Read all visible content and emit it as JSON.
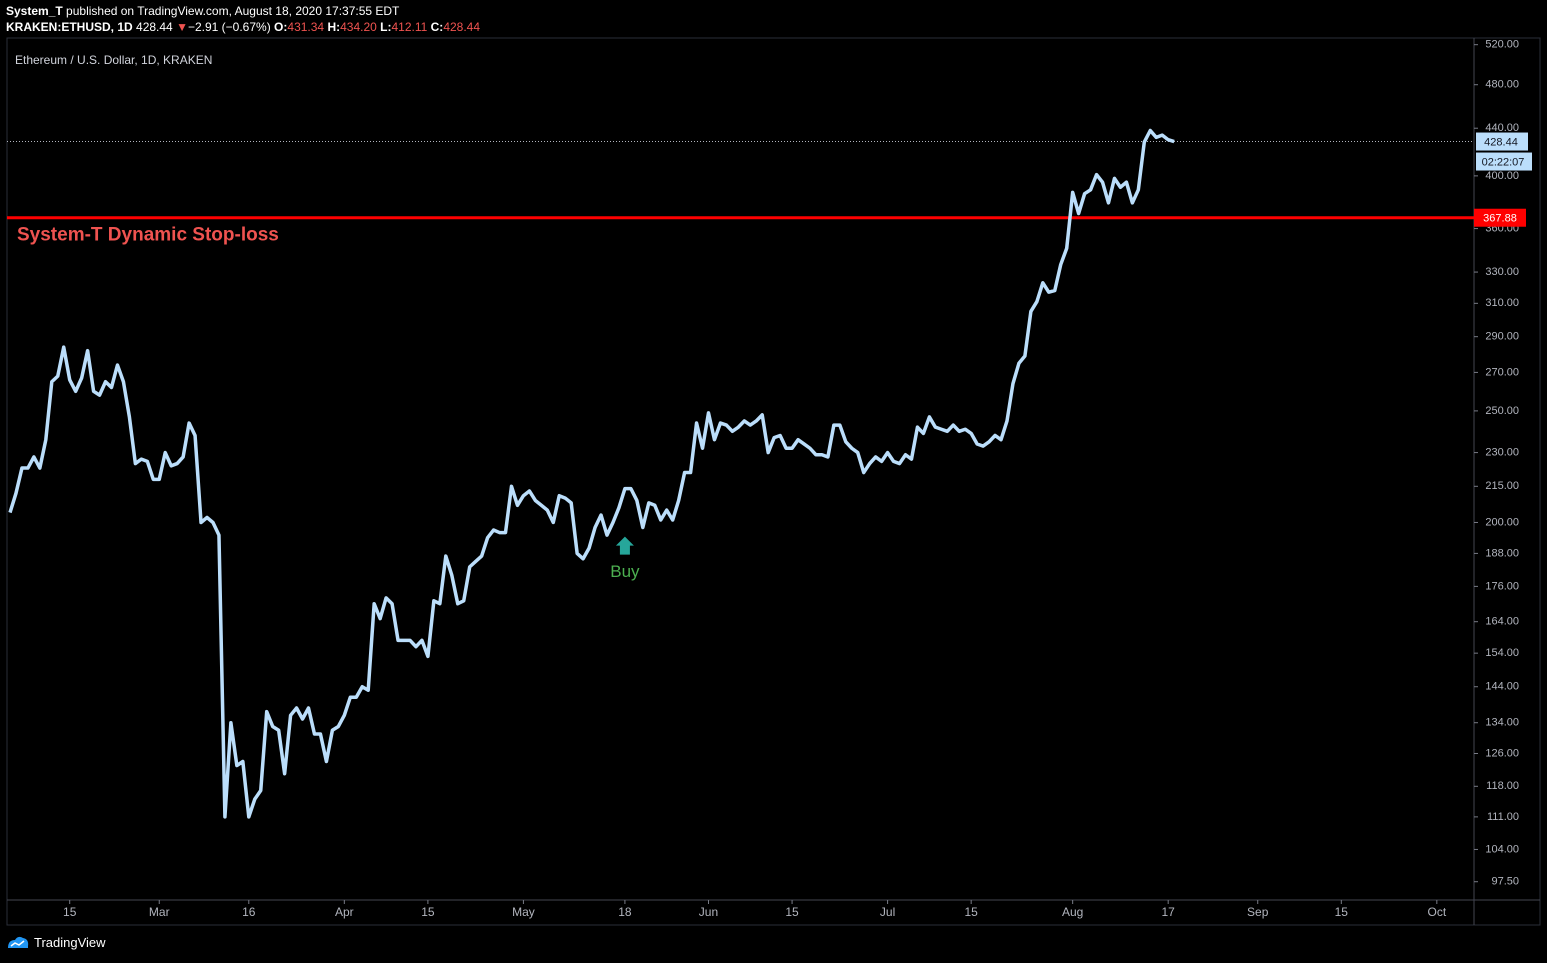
{
  "header": {
    "publisher": "System_T",
    "published_text": "published on TradingView.com, August 18, 2020 17:37:55 EDT",
    "symbol": "KRAKEN:ETHUSD, 1D",
    "last": "428.44",
    "arrow": "▼",
    "change": "−2.91 (−0.67%)",
    "ohlc": [
      {
        "label": "O:",
        "value": "431.34"
      },
      {
        "label": "H:",
        "value": "434.20"
      },
      {
        "label": "L:",
        "value": "412.11"
      },
      {
        "label": "C:",
        "value": "428.44"
      }
    ]
  },
  "footer": {
    "brand": "TradingView"
  },
  "chart_data": {
    "type": "line",
    "title": "Ethereum / U.S. Dollar, 1D, KRAKEN",
    "color": "#bbdefb",
    "log_scale": true,
    "x": [
      "Feb 5",
      "Feb 6",
      "Feb 7",
      "Feb 8",
      "Feb 9",
      "Feb 10",
      "Feb 11",
      "Feb 12",
      "Feb 13",
      "Feb 14",
      "Feb 15",
      "Feb 16",
      "Feb 17",
      "Feb 18",
      "Feb 19",
      "Feb 20",
      "Feb 21",
      "Feb 22",
      "Feb 23",
      "Feb 24",
      "Feb 25",
      "Feb 26",
      "Feb 27",
      "Feb 28",
      "Feb 29",
      "Mar 1",
      "Mar 2",
      "Mar 3",
      "Mar 4",
      "Mar 5",
      "Mar 6",
      "Mar 7",
      "Mar 8",
      "Mar 9",
      "Mar 10",
      "Mar 11",
      "Mar 12",
      "Mar 13",
      "Mar 14",
      "Mar 15",
      "Mar 16",
      "Mar 17",
      "Mar 18",
      "Mar 19",
      "Mar 20",
      "Mar 21",
      "Mar 22",
      "Mar 23",
      "Mar 24",
      "Mar 25",
      "Mar 26",
      "Mar 27",
      "Mar 28",
      "Mar 29",
      "Mar 30",
      "Mar 31",
      "Apr 1",
      "Apr 2",
      "Apr 3",
      "Apr 4",
      "Apr 5",
      "Apr 6",
      "Apr 7",
      "Apr 8",
      "Apr 9",
      "Apr 10",
      "Apr 11",
      "Apr 12",
      "Apr 13",
      "Apr 14",
      "Apr 15",
      "Apr 16",
      "Apr 17",
      "Apr 18",
      "Apr 19",
      "Apr 20",
      "Apr 21",
      "Apr 22",
      "Apr 23",
      "Apr 24",
      "Apr 25",
      "Apr 26",
      "Apr 27",
      "Apr 28",
      "Apr 29",
      "Apr 30",
      "May 1",
      "May 2",
      "May 3",
      "May 4",
      "May 5",
      "May 6",
      "May 7",
      "May 8",
      "May 9",
      "May 10",
      "May 11",
      "May 12",
      "May 13",
      "May 14",
      "May 15",
      "May 16",
      "May 17",
      "May 18",
      "May 19",
      "May 20",
      "May 21",
      "May 22",
      "May 23",
      "May 24",
      "May 25",
      "May 26",
      "May 27",
      "May 28",
      "May 29",
      "May 30",
      "May 31",
      "Jun 1",
      "Jun 2",
      "Jun 3",
      "Jun 4",
      "Jun 5",
      "Jun 6",
      "Jun 7",
      "Jun 8",
      "Jun 9",
      "Jun 10",
      "Jun 11",
      "Jun 12",
      "Jun 13",
      "Jun 14",
      "Jun 15",
      "Jun 16",
      "Jun 17",
      "Jun 18",
      "Jun 19",
      "Jun 20",
      "Jun 21",
      "Jun 22",
      "Jun 23",
      "Jun 24",
      "Jun 25",
      "Jun 26",
      "Jun 27",
      "Jun 28",
      "Jun 29",
      "Jun 30",
      "Jul 1",
      "Jul 2",
      "Jul 3",
      "Jul 4",
      "Jul 5",
      "Jul 6",
      "Jul 7",
      "Jul 8",
      "Jul 9",
      "Jul 10",
      "Jul 11",
      "Jul 12",
      "Jul 13",
      "Jul 14",
      "Jul 15",
      "Jul 16",
      "Jul 17",
      "Jul 18",
      "Jul 19",
      "Jul 20",
      "Jul 21",
      "Jul 22",
      "Jul 23",
      "Jul 24",
      "Jul 25",
      "Jul 26",
      "Jul 27",
      "Jul 28",
      "Jul 29",
      "Jul 30",
      "Jul 31",
      "Aug 1",
      "Aug 2",
      "Aug 3",
      "Aug 4",
      "Aug 5",
      "Aug 6",
      "Aug 7",
      "Aug 8",
      "Aug 9",
      "Aug 10",
      "Aug 11",
      "Aug 12",
      "Aug 13",
      "Aug 14",
      "Aug 15",
      "Aug 16",
      "Aug 17",
      "Aug 18"
    ],
    "values": [
      204,
      212,
      223,
      223,
      228,
      223,
      236,
      265,
      268,
      284,
      266,
      260,
      267,
      282,
      260,
      258,
      265,
      262,
      274,
      265,
      247,
      225,
      227,
      226,
      218,
      218,
      230,
      224,
      225,
      228,
      244,
      238,
      200,
      202,
      200,
      195,
      111,
      134,
      123,
      124,
      111,
      115,
      117,
      137,
      133,
      132,
      121,
      136,
      138,
      135,
      138,
      131,
      131,
      124,
      132,
      133,
      136,
      141,
      141,
      144,
      143,
      170,
      165,
      172,
      170,
      158,
      158,
      158,
      156,
      158,
      153,
      171,
      170,
      187,
      180,
      170,
      171,
      183,
      185,
      187,
      194,
      197,
      196,
      196,
      215,
      207,
      211,
      213,
      209,
      207,
      205,
      200,
      211,
      210,
      208,
      188,
      186,
      190,
      198,
      203,
      195,
      200,
      206,
      214,
      214,
      209,
      198,
      208,
      207,
      201,
      205,
      201,
      209,
      221,
      221,
      244,
      232,
      249,
      236,
      244,
      243,
      240,
      242,
      245,
      243,
      245,
      248,
      230,
      237,
      238,
      232,
      232,
      236,
      234,
      232,
      229,
      229,
      228,
      243,
      243,
      235,
      232,
      230,
      221,
      225,
      228,
      226,
      230,
      226,
      225,
      229,
      227,
      242,
      239,
      247,
      242,
      241,
      240,
      243,
      240,
      241,
      239,
      234,
      233,
      235,
      238,
      236,
      245,
      264,
      275,
      279,
      305,
      311,
      323,
      317,
      318,
      335,
      346,
      387,
      371,
      386,
      389,
      401,
      395,
      379,
      398,
      391,
      395,
      379,
      389,
      428,
      438,
      432,
      434,
      430,
      428.44
    ],
    "ylim": [
      94,
      527
    ],
    "yticks": [
      {
        "value": 520,
        "label": "520.00"
      },
      {
        "value": 480,
        "label": "480.00"
      },
      {
        "value": 440,
        "label": "440.00"
      },
      {
        "value": 400,
        "label": "400.00"
      },
      {
        "value": 360,
        "label": "360.00"
      },
      {
        "value": 330,
        "label": "330.00"
      },
      {
        "value": 310,
        "label": "310.00"
      },
      {
        "value": 290,
        "label": "290.00"
      },
      {
        "value": 270,
        "label": "270.00"
      },
      {
        "value": 250,
        "label": "250.00"
      },
      {
        "value": 230,
        "label": "230.00"
      },
      {
        "value": 215,
        "label": "215.00"
      },
      {
        "value": 200,
        "label": "200.00"
      },
      {
        "value": 188,
        "label": "188.00"
      },
      {
        "value": 176,
        "label": "176.00"
      },
      {
        "value": 164,
        "label": "164.00"
      },
      {
        "value": 154,
        "label": "154.00"
      },
      {
        "value": 144,
        "label": "144.00"
      },
      {
        "value": 134,
        "label": "134.00"
      },
      {
        "value": 126,
        "label": "126.00"
      },
      {
        "value": 118,
        "label": "118.00"
      },
      {
        "value": 111,
        "label": "111.00"
      },
      {
        "value": 104,
        "label": "104.00"
      },
      {
        "value": 97.5,
        "label": "97.50"
      }
    ],
    "xticks": [
      {
        "value": "Feb 15",
        "label": "15"
      },
      {
        "value": "Mar 1",
        "label": "Mar"
      },
      {
        "value": "Mar 16",
        "label": "16"
      },
      {
        "value": "Apr 1",
        "label": "Apr"
      },
      {
        "value": "Apr 15",
        "label": "15"
      },
      {
        "value": "May 1",
        "label": "May"
      },
      {
        "value": "May 18",
        "label": "18"
      },
      {
        "value": "Jun 1",
        "label": "Jun"
      },
      {
        "value": "Jun 15",
        "label": "15"
      },
      {
        "value": "Jul 1",
        "label": "Jul"
      },
      {
        "value": "Jul 15",
        "label": "15"
      },
      {
        "value": "Aug 1",
        "label": "Aug"
      },
      {
        "value": "Aug 17",
        "label": "17"
      },
      {
        "value": "Sep 1",
        "label": "Sep"
      },
      {
        "value": "Sep 15",
        "label": "15"
      },
      {
        "value": "Oct 1",
        "label": "Oct"
      }
    ],
    "last_price": 428.44,
    "countdown": "02:22:07",
    "stop_loss": {
      "label": "System-T Dynamic Stop-loss",
      "value": 367.88,
      "color": "#ff0000"
    },
    "markers": [
      {
        "x": "May 18",
        "label": "Buy",
        "color": "#26a69a"
      }
    ]
  }
}
